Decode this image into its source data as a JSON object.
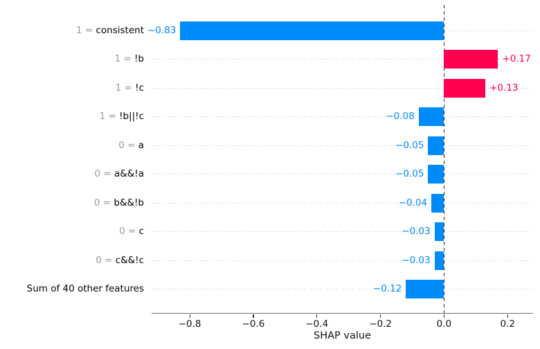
{
  "chart_data": {
    "type": "bar",
    "orientation": "horizontal",
    "title": "",
    "xlabel": "SHAP value",
    "xlim": [
      -0.92,
      0.28
    ],
    "grid": "dotted-horizontal-per-row",
    "zero_line": true,
    "legend": null,
    "colors": {
      "positive_bar": "#ff0051",
      "negative_bar": "#008bfb",
      "category_prefix": "#9a9a9a",
      "category_feature": "#000000",
      "gridline": "#c2c2c2",
      "zero_line": "#2b2b2b",
      "axis": "#6e6e6e"
    },
    "rows": [
      {
        "prefix": "1 = ",
        "feature": "consistent",
        "value": -0.83,
        "value_label": "−0.83"
      },
      {
        "prefix": "1 = ",
        "feature": "!b",
        "value": 0.17,
        "value_label": "+0.17"
      },
      {
        "prefix": "1 = ",
        "feature": "!c",
        "value": 0.13,
        "value_label": "+0.13"
      },
      {
        "prefix": "1 = ",
        "feature": "!b||!c",
        "value": -0.08,
        "value_label": "−0.08"
      },
      {
        "prefix": "0 = ",
        "feature": "a",
        "value": -0.05,
        "value_label": "−0.05"
      },
      {
        "prefix": "0 = ",
        "feature": "a&&!a",
        "value": -0.05,
        "value_label": "−0.05"
      },
      {
        "prefix": "0 = ",
        "feature": "b&&!b",
        "value": -0.04,
        "value_label": "−0.04"
      },
      {
        "prefix": "0 = ",
        "feature": "c",
        "value": -0.03,
        "value_label": "−0.03"
      },
      {
        "prefix": "0 = ",
        "feature": "c&&!c",
        "value": -0.03,
        "value_label": "−0.03"
      },
      {
        "prefix": "",
        "feature": "Sum of 40 other features",
        "value": -0.12,
        "value_label": "−0.12"
      }
    ],
    "xticks": [
      {
        "value": -0.8,
        "label": "−0.8"
      },
      {
        "value": -0.6,
        "label": "−0.6"
      },
      {
        "value": -0.4,
        "label": "−0.4"
      },
      {
        "value": -0.2,
        "label": "−0.2"
      },
      {
        "value": 0.0,
        "label": "0.0"
      },
      {
        "value": 0.2,
        "label": "0.2"
      }
    ]
  }
}
